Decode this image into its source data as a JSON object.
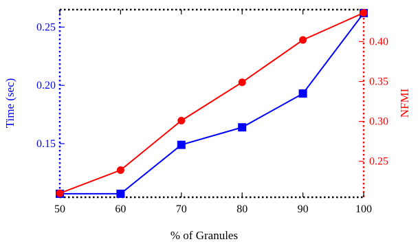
{
  "chart_data": {
    "type": "line",
    "title": "",
    "xlabel": "% of Granules",
    "x": [
      50,
      60,
      70,
      80,
      90,
      100
    ],
    "xlim": [
      50,
      100
    ],
    "xticks": [
      "50",
      "60",
      "70",
      "80",
      "90",
      "100"
    ],
    "grid": false,
    "y_left": {
      "label": "Time (sec)",
      "color": "#0000ff",
      "ylim": [
        0.104,
        0.265
      ],
      "ticks": [
        0.15,
        0.2,
        0.25
      ],
      "tick_labels": [
        "0.15",
        "0.20",
        "0.25"
      ]
    },
    "y_right": {
      "label": "NFMI",
      "color": "#ff0000",
      "ylim": [
        0.205,
        0.44
      ],
      "ticks": [
        0.25,
        0.3,
        0.35,
        0.4
      ],
      "tick_labels": [
        "0.25",
        "0.30",
        "0.35",
        "0.40"
      ]
    },
    "series": [
      {
        "axis": "left",
        "color": "#0000ff",
        "marker": "square",
        "values": [
          0.107,
          0.107,
          0.149,
          0.164,
          0.193,
          0.262
        ]
      },
      {
        "axis": "right",
        "color": "#ff0000",
        "marker": "circle",
        "values": [
          0.21,
          0.239,
          0.301,
          0.349,
          0.402,
          0.436
        ]
      }
    ]
  }
}
